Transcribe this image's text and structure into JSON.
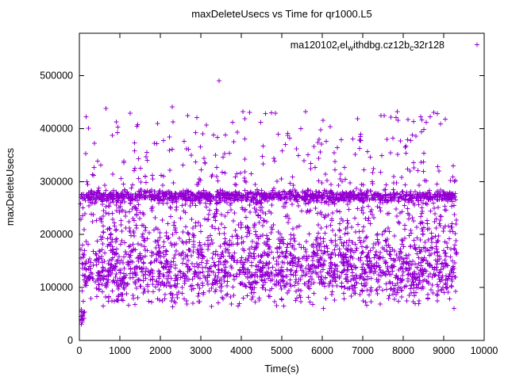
{
  "chart_data": {
    "type": "scatter",
    "title": "maxDeleteUsecs vs Time for qr1000.L5",
    "xlabel": "Time(s)",
    "ylabel": "maxDeleteUsecs",
    "xlim": [
      0,
      10000
    ],
    "ylim": [
      0,
      580000
    ],
    "x_ticks": [
      0,
      1000,
      2000,
      3000,
      4000,
      5000,
      6000,
      7000,
      8000,
      9000,
      10000
    ],
    "y_ticks": [
      0,
      100000,
      200000,
      300000,
      400000,
      500000
    ],
    "grid": false,
    "legend_position": "top-right-inside",
    "marker": "plus",
    "color": "#9400d3",
    "axis_color": "#000000",
    "seed": 42,
    "series": [
      {
        "name": "ma120102_rel_withdbg.cz12b_c32r128",
        "label_segments": [
          {
            "text": "ma120102"
          },
          {
            "text": "r",
            "sub": true
          },
          {
            "text": "el"
          },
          {
            "text": "w",
            "sub": true
          },
          {
            "text": "ithdbg.cz12b"
          },
          {
            "text": "c",
            "sub": true
          },
          {
            "text": "32r128"
          }
        ],
        "clusters": [
          {
            "name": "dense-band",
            "count": 1100,
            "x": [
              30,
              9320
            ],
            "y": {
              "dist": "normal",
              "mean": 272000,
              "sd": 5500,
              "clamp": [
                256000,
                290000
              ]
            }
          },
          {
            "name": "mid-cloud",
            "count": 1400,
            "x": [
              30,
              9320
            ],
            "y": {
              "dist": "normal",
              "mean": 131000,
              "sd": 27000,
              "clamp": [
                72000,
                215000
              ]
            }
          },
          {
            "name": "upper-cloud",
            "count": 650,
            "x": [
              30,
              9320
            ],
            "y": {
              "dist": "uniform",
              "min": 155000,
              "max": 262000
            }
          },
          {
            "name": "high-scatter",
            "count": 240,
            "x": [
              150,
              9320
            ],
            "y": {
              "dist": "uniform",
              "min": 293000,
              "max": 432000,
              "pow": 1.6
            }
          },
          {
            "name": "low-scatter",
            "count": 60,
            "x": [
              30,
              9320
            ],
            "y": {
              "dist": "uniform",
              "min": 60000,
              "max": 88000
            }
          },
          {
            "name": "startup-low",
            "count": 14,
            "x": [
              30,
              130
            ],
            "y": {
              "dist": "uniform",
              "min": 28000,
              "max": 60000
            }
          }
        ],
        "points": [
          [
            3450,
            490000
          ],
          [
            660,
            438000
          ],
          [
            2290,
            441000
          ]
        ]
      }
    ]
  }
}
